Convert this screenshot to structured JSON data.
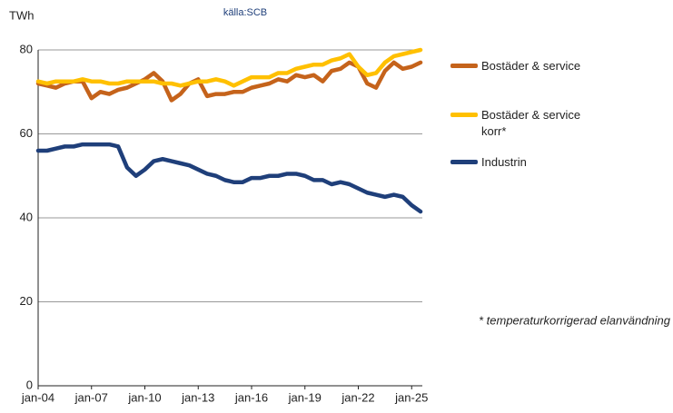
{
  "chart_data": {
    "type": "line",
    "source": "källa:SCB",
    "y_label": "TWh",
    "annotation": "* temperaturkorrigerad elanvändning",
    "x": [
      2004,
      2004.5,
      2005,
      2005.5,
      2006,
      2006.5,
      2007,
      2007.5,
      2008,
      2008.5,
      2009,
      2009.5,
      2010,
      2010.5,
      2011,
      2011.5,
      2012,
      2012.5,
      2013,
      2013.5,
      2014,
      2014.5,
      2015,
      2015.5,
      2016,
      2016.5,
      2017,
      2017.5,
      2018,
      2018.5,
      2019,
      2019.5,
      2020,
      2020.5,
      2021,
      2021.5,
      2022,
      2022.5,
      2023,
      2023.5,
      2024,
      2024.5,
      2025,
      2025.5
    ],
    "series": [
      {
        "name": "Bostäder & service",
        "color": "#c5631b",
        "values": [
          72,
          71.5,
          71,
          72,
          72.5,
          72.5,
          68.5,
          70,
          69.5,
          70.5,
          71,
          72,
          73,
          74.5,
          72.5,
          68,
          69.5,
          72,
          73,
          69,
          69.5,
          69.5,
          70,
          70,
          71,
          71.5,
          72,
          73,
          72.5,
          74,
          73.5,
          74,
          72.5,
          75,
          75.5,
          77,
          76,
          72,
          71,
          75,
          77,
          75.5,
          76,
          77
        ]
      },
      {
        "name": "Bostäder & service korr*",
        "color": "#ffc000",
        "values": [
          72.5,
          72,
          72.5,
          72.5,
          72.5,
          73,
          72.5,
          72.5,
          72,
          72,
          72.5,
          72.5,
          72.5,
          72.5,
          72,
          72,
          71.5,
          72,
          72.5,
          72.5,
          73,
          72.5,
          71.5,
          72.5,
          73.5,
          73.5,
          73.5,
          74.5,
          74.5,
          75.5,
          76,
          76.5,
          76.5,
          77.5,
          78,
          79,
          76,
          74,
          74.5,
          77,
          78.5,
          79,
          79.5,
          80
        ]
      },
      {
        "name": "Industrin",
        "color": "#1f3f7a",
        "values": [
          56,
          56,
          56.5,
          57,
          57,
          57.5,
          57.5,
          57.5,
          57.5,
          57,
          52,
          50,
          51.5,
          53.5,
          54,
          53.5,
          53,
          52.5,
          51.5,
          50.5,
          50,
          49,
          48.5,
          48.5,
          49.5,
          49.5,
          50,
          50,
          50.5,
          50.5,
          50,
          49,
          49,
          48,
          48.5,
          48,
          47,
          46,
          45.5,
          45,
          45.5,
          45,
          43,
          41.5
        ]
      }
    ],
    "xlim": [
      2004,
      2025.6
    ],
    "xticks": [
      {
        "value": 2004,
        "label": "jan-04"
      },
      {
        "value": 2007,
        "label": "jan-07"
      },
      {
        "value": 2010,
        "label": "jan-10"
      },
      {
        "value": 2013,
        "label": "jan-13"
      },
      {
        "value": 2016,
        "label": "jan-16"
      },
      {
        "value": 2019,
        "label": "jan-19"
      },
      {
        "value": 2022,
        "label": "jan-22"
      },
      {
        "value": 2025,
        "label": "jan-25"
      }
    ],
    "ylim": [
      0,
      80
    ],
    "yticks": [
      0,
      20,
      40,
      60,
      80
    ],
    "grid": true
  }
}
